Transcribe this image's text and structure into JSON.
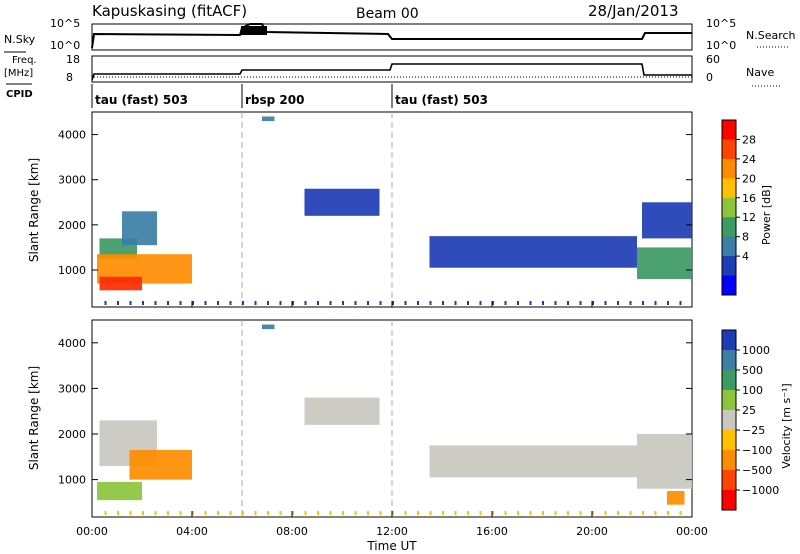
{
  "header": {
    "station": "Kapuskasing (fitACF)",
    "beam": "Beam 00",
    "date": "28/Jan/2013"
  },
  "top_panels": {
    "nsky_label": "N.Sky",
    "nsky_ticks": [
      "10^5",
      "10^0"
    ],
    "nsearch_label": "N.Search",
    "nsearch_ticks": [
      "10^5",
      "10^0"
    ],
    "freq_label": "Freq.",
    "freq_unit": "[MHz]",
    "freq_ticks": [
      "18",
      "8"
    ],
    "nave_label": "Nave",
    "nave_ticks": [
      "60",
      "0"
    ],
    "cpid_label": "CPID",
    "cpid_segments": [
      {
        "label": "tau (fast) 503",
        "start_h": 0,
        "end_h": 6
      },
      {
        "label": "rbsp 200",
        "start_h": 6,
        "end_h": 12
      },
      {
        "label": "tau (fast) 503",
        "start_h": 12,
        "end_h": 24
      }
    ]
  },
  "chart_data": [
    {
      "type": "heatmap",
      "panel": "power",
      "ylabel": "Slant Range [km]",
      "xlabel": "Time UT",
      "x_ticks": [
        "00:00",
        "04:00",
        "08:00",
        "12:00",
        "16:00",
        "20:00",
        "00:00"
      ],
      "xlim_hours": [
        0,
        24
      ],
      "y_ticks": [
        "1000",
        "2000",
        "3000",
        "4000"
      ],
      "ylim_km": [
        180,
        4500
      ],
      "colorbar_label": "Power [dB]",
      "colorbar_ticks": [
        "28",
        "24",
        "20",
        "16",
        "12",
        "8",
        "4"
      ],
      "colorbar_colors": [
        "#ff0000",
        "#ff4400",
        "#ff8c00",
        "#ffc000",
        "#8cc43c",
        "#3c9a64",
        "#3c7ea6",
        "#1e3cb4",
        "#0000ff"
      ],
      "mode_change_hours": [
        6,
        12
      ],
      "regions": [
        {
          "t0": 0.3,
          "t1": 1.8,
          "r0": 1250,
          "r1": 1700,
          "color": "#3c9a64"
        },
        {
          "t0": 1.2,
          "t1": 2.6,
          "r0": 1550,
          "r1": 2300,
          "color": "#3c7ea6"
        },
        {
          "t0": 0.2,
          "t1": 4.0,
          "r0": 700,
          "r1": 1350,
          "color": "#ff8c00"
        },
        {
          "t0": 0.3,
          "t1": 2.0,
          "r0": 550,
          "r1": 850,
          "color": "#ff2a00"
        },
        {
          "t0": 13.5,
          "t1": 21.8,
          "r0": 1050,
          "r1": 1750,
          "color": "#1e3cb4"
        },
        {
          "t0": 21.8,
          "t1": 24.0,
          "r0": 800,
          "r1": 1500,
          "color": "#3c9a64"
        },
        {
          "t0": 22.0,
          "t1": 24.0,
          "r0": 1700,
          "r1": 2500,
          "color": "#1e3cb4"
        },
        {
          "t0": 8.5,
          "t1": 11.5,
          "r0": 2200,
          "r1": 2800,
          "color": "#1e3cb4"
        },
        {
          "t0": 6.8,
          "t1": 7.3,
          "r0": 4300,
          "r1": 4400,
          "color": "#3c7ea6"
        }
      ]
    },
    {
      "type": "heatmap",
      "panel": "velocity",
      "ylabel": "Slant Range [km]",
      "xlabel": "Time UT",
      "x_ticks": [
        "00:00",
        "04:00",
        "08:00",
        "12:00",
        "16:00",
        "20:00",
        "00:00"
      ],
      "xlim_hours": [
        0,
        24
      ],
      "y_ticks": [
        "1000",
        "2000",
        "3000",
        "4000"
      ],
      "ylim_km": [
        180,
        4500
      ],
      "colorbar_label": "Velocity [m s⁻¹]",
      "colorbar_ticks": [
        "1000",
        "500",
        "100",
        "25",
        "−25",
        "−100",
        "−500",
        "−1000"
      ],
      "colorbar_colors": [
        "#1e3cb4",
        "#3c7ea6",
        "#3c9a64",
        "#8cc43c",
        "#c8c8c0",
        "#ffc000",
        "#ff8c00",
        "#ff4400",
        "#ff0000"
      ],
      "mode_change_hours": [
        6,
        12
      ],
      "regions": [
        {
          "t0": 0.3,
          "t1": 2.6,
          "r0": 1300,
          "r1": 2300,
          "color": "#c8c8c0"
        },
        {
          "t0": 0.2,
          "t1": 2.0,
          "r0": 550,
          "r1": 950,
          "color": "#8cc43c"
        },
        {
          "t0": 1.5,
          "t1": 4.0,
          "r0": 1000,
          "r1": 1650,
          "color": "#ff8c00"
        },
        {
          "t0": 13.5,
          "t1": 21.8,
          "r0": 1050,
          "r1": 1750,
          "color": "#c8c8c0"
        },
        {
          "t0": 21.8,
          "t1": 24.0,
          "r0": 800,
          "r1": 2000,
          "color": "#c8c8c0"
        },
        {
          "t0": 8.5,
          "t1": 11.5,
          "r0": 2200,
          "r1": 2800,
          "color": "#c8c8c0"
        },
        {
          "t0": 23.0,
          "t1": 23.7,
          "r0": 450,
          "r1": 750,
          "color": "#ff8c00"
        },
        {
          "t0": 6.8,
          "t1": 7.3,
          "r0": 4300,
          "r1": 4400,
          "color": "#3c7ea6"
        }
      ]
    }
  ]
}
